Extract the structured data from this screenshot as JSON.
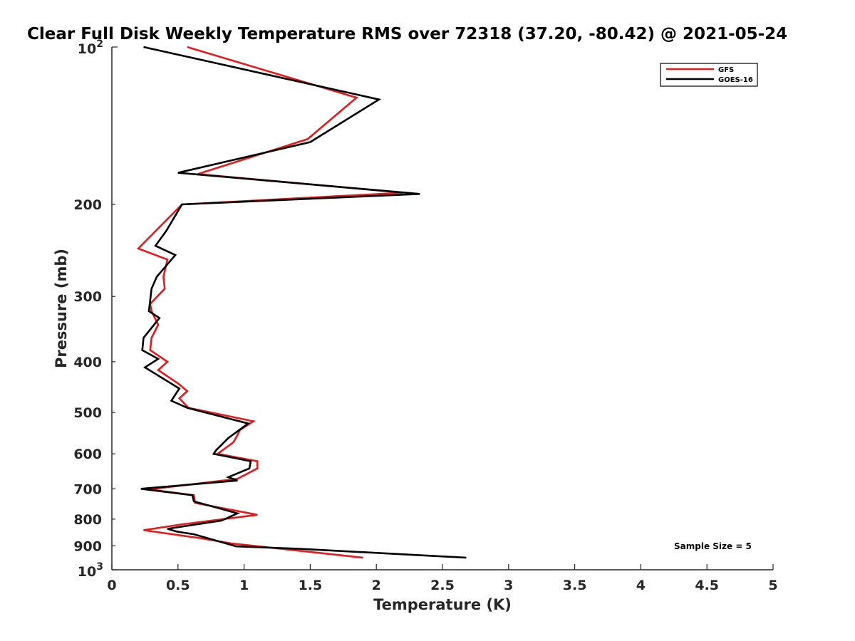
{
  "chart_data": {
    "type": "line",
    "title": "Clear Full Disk Weekly Temperature RMS over 72318 (37.20, -80.42) @ 2021-05-24",
    "xlabel": "Temperature (K)",
    "ylabel": "Pressure (mb)",
    "xlim": [
      0,
      5
    ],
    "ylim": [
      100,
      1000
    ],
    "y_scale": "log",
    "y_reversed": true,
    "grid": false,
    "legend_position": "top-right",
    "x_ticks": [
      {
        "value": 0,
        "label": "0"
      },
      {
        "value": 0.5,
        "label": "0.5"
      },
      {
        "value": 1,
        "label": "1"
      },
      {
        "value": 1.5,
        "label": "1.5"
      },
      {
        "value": 2,
        "label": "2"
      },
      {
        "value": 2.5,
        "label": "2.5"
      },
      {
        "value": 3,
        "label": "3"
      },
      {
        "value": 3.5,
        "label": "3.5"
      },
      {
        "value": 4,
        "label": "4"
      },
      {
        "value": 4.5,
        "label": "4.5"
      },
      {
        "value": 5,
        "label": "5"
      }
    ],
    "y_ticks": [
      {
        "value": 100,
        "base": "10",
        "exp": "2"
      },
      {
        "value": 200,
        "label": "200"
      },
      {
        "value": 300,
        "label": "300"
      },
      {
        "value": 400,
        "label": "400"
      },
      {
        "value": 500,
        "label": "500"
      },
      {
        "value": 600,
        "label": "600"
      },
      {
        "value": 700,
        "label": "700"
      },
      {
        "value": 800,
        "label": "800"
      },
      {
        "value": 900,
        "label": "900"
      },
      {
        "value": 1000,
        "base": "10",
        "exp": "3"
      }
    ],
    "series": [
      {
        "name": "GFS",
        "color": "#e41a1c",
        "points": [
          [
            0.57,
            100
          ],
          [
            1.85,
            125
          ],
          [
            1.48,
            150
          ],
          [
            0.65,
            175
          ],
          [
            2.2,
            190
          ],
          [
            0.53,
            200
          ],
          [
            0.2,
            243
          ],
          [
            0.42,
            255
          ],
          [
            0.39,
            275
          ],
          [
            0.4,
            290
          ],
          [
            0.29,
            310
          ],
          [
            0.3,
            320
          ],
          [
            0.35,
            340
          ],
          [
            0.3,
            360
          ],
          [
            0.29,
            380
          ],
          [
            0.42,
            400
          ],
          [
            0.35,
            415
          ],
          [
            0.5,
            440
          ],
          [
            0.57,
            455
          ],
          [
            0.51,
            470
          ],
          [
            0.58,
            490
          ],
          [
            1.07,
            520
          ],
          [
            0.97,
            540
          ],
          [
            0.92,
            570
          ],
          [
            0.8,
            600
          ],
          [
            1.1,
            620
          ],
          [
            1.1,
            640
          ],
          [
            0.95,
            670
          ],
          [
            0.28,
            702
          ],
          [
            0.62,
            720
          ],
          [
            0.63,
            745
          ],
          [
            1.1,
            785
          ],
          [
            0.54,
            818
          ],
          [
            0.24,
            840
          ],
          [
            0.67,
            870
          ],
          [
            0.9,
            890
          ],
          [
            1.9,
            948
          ]
        ]
      },
      {
        "name": "GOES-16",
        "color": "#000000",
        "points": [
          [
            0.24,
            100
          ],
          [
            2.02,
            126
          ],
          [
            1.5,
            152
          ],
          [
            0.5,
            174
          ],
          [
            2.33,
            191
          ],
          [
            0.53,
            200
          ],
          [
            0.41,
            225
          ],
          [
            0.33,
            240
          ],
          [
            0.48,
            250
          ],
          [
            0.34,
            275
          ],
          [
            0.3,
            290
          ],
          [
            0.28,
            320
          ],
          [
            0.36,
            330
          ],
          [
            0.24,
            360
          ],
          [
            0.23,
            380
          ],
          [
            0.35,
            395
          ],
          [
            0.25,
            410
          ],
          [
            0.51,
            450
          ],
          [
            0.45,
            475
          ],
          [
            0.57,
            490
          ],
          [
            1.03,
            525
          ],
          [
            0.88,
            560
          ],
          [
            0.79,
            590
          ],
          [
            0.77,
            600
          ],
          [
            1.05,
            620
          ],
          [
            1.04,
            640
          ],
          [
            0.88,
            665
          ],
          [
            0.95,
            675
          ],
          [
            0.22,
            700
          ],
          [
            0.61,
            720
          ],
          [
            0.62,
            740
          ],
          [
            0.95,
            780
          ],
          [
            0.83,
            805
          ],
          [
            0.42,
            835
          ],
          [
            0.49,
            845
          ],
          [
            0.62,
            855
          ],
          [
            0.94,
            902
          ],
          [
            1.42,
            912
          ],
          [
            2.68,
            948
          ]
        ]
      }
    ],
    "annotations": [
      {
        "text": "Sample Size = 5",
        "position": "bottom-right"
      }
    ]
  }
}
